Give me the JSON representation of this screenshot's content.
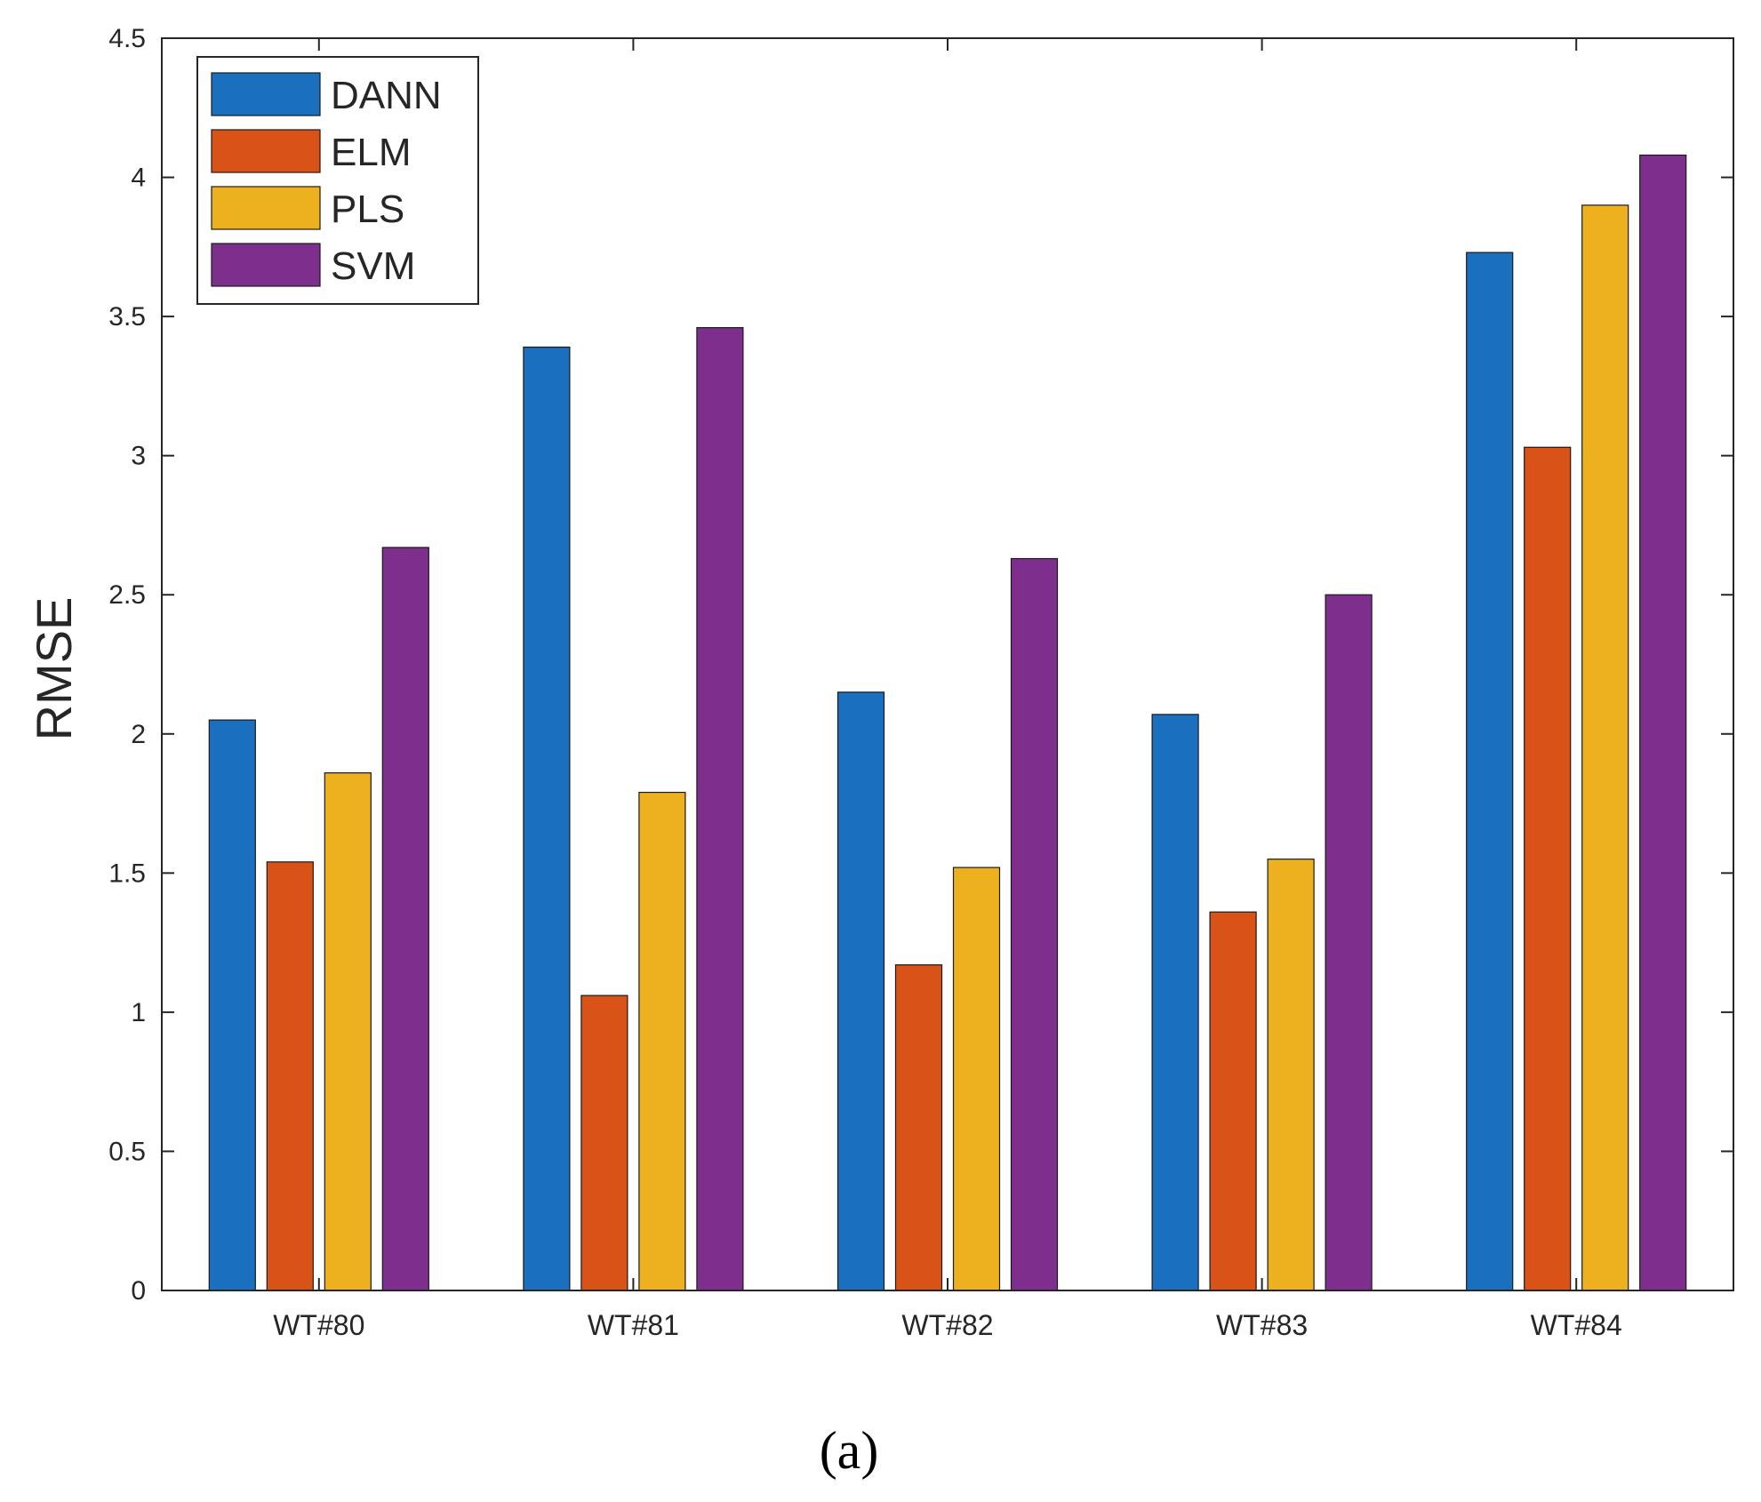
{
  "chart_data": {
    "type": "bar",
    "title": "",
    "xlabel": "",
    "ylabel": "RMSE",
    "ylim": [
      0,
      4.5
    ],
    "yticks": [
      0,
      0.5,
      1,
      1.5,
      2,
      2.5,
      3,
      3.5,
      4,
      4.5
    ],
    "ytick_labels": [
      "0",
      "0.5",
      "1",
      "1.5",
      "2",
      "2.5",
      "3",
      "3.5",
      "4",
      "4.5"
    ],
    "categories": [
      "WT#80",
      "WT#81",
      "WT#82",
      "WT#83",
      "WT#84"
    ],
    "series": [
      {
        "name": "DANN",
        "color": "#1A6FBF",
        "values": [
          2.05,
          3.39,
          2.15,
          2.07,
          3.73
        ]
      },
      {
        "name": "ELM",
        "color": "#D95319",
        "values": [
          1.54,
          1.06,
          1.17,
          1.36,
          3.03
        ]
      },
      {
        "name": "PLS",
        "color": "#EDB120",
        "values": [
          1.86,
          1.79,
          1.52,
          1.55,
          3.9
        ]
      },
      {
        "name": "SVM",
        "color": "#7E2F8E",
        "values": [
          2.67,
          3.46,
          2.63,
          2.5,
          4.08
        ]
      }
    ],
    "legend_position": "top-left",
    "grid": false
  },
  "caption": "(a)"
}
